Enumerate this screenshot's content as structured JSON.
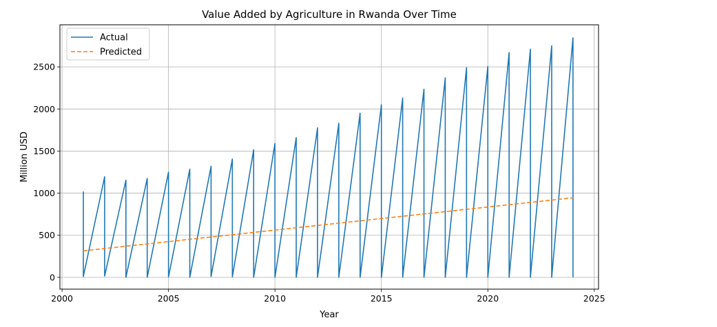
{
  "chart_data": {
    "type": "line",
    "title": "Value Added by Agriculture in Rwanda Over Time",
    "xlabel": "Year",
    "ylabel": "Million USD",
    "xlim": [
      1999.9,
      2025.2
    ],
    "ylim": [
      -140,
      3000
    ],
    "x_ticks": [
      2000,
      2005,
      2010,
      2015,
      2020,
      2025
    ],
    "y_ticks": [
      0,
      500,
      1000,
      1500,
      2000,
      2500
    ],
    "grid": true,
    "legend": {
      "position": "upper-left",
      "entries": [
        "Actual",
        "Predicted"
      ]
    },
    "series": [
      {
        "name": "Actual",
        "style": "solid",
        "color": "#1f77b4",
        "x": [
          2001,
          2001,
          2002,
          2002,
          2003,
          2003,
          2004,
          2004,
          2005,
          2005,
          2006,
          2006,
          2007,
          2007,
          2008,
          2008,
          2009,
          2009,
          2010,
          2010,
          2011,
          2011,
          2012,
          2012,
          2013,
          2013,
          2014,
          2014,
          2015,
          2015,
          2016,
          2016,
          2017,
          2017,
          2018,
          2018,
          2019,
          2019,
          2020,
          2020,
          2021,
          2021,
          2022,
          2022,
          2023,
          2023,
          2024,
          2024
        ],
        "y": [
          1020,
          10,
          1195,
          15,
          1155,
          0,
          1175,
          0,
          1250,
          5,
          1285,
          0,
          1320,
          10,
          1405,
          5,
          1515,
          0,
          1590,
          0,
          1660,
          0,
          1775,
          0,
          1830,
          0,
          1950,
          0,
          2050,
          0,
          2130,
          0,
          2235,
          0,
          2370,
          0,
          2490,
          0,
          2505,
          0,
          2670,
          0,
          2710,
          0,
          2750,
          0,
          2845,
          0
        ]
      },
      {
        "name": "Predicted",
        "style": "dashed",
        "color": "#ff7f0e",
        "x": [
          2001,
          2024
        ],
        "y": [
          315,
          945
        ]
      }
    ]
  }
}
